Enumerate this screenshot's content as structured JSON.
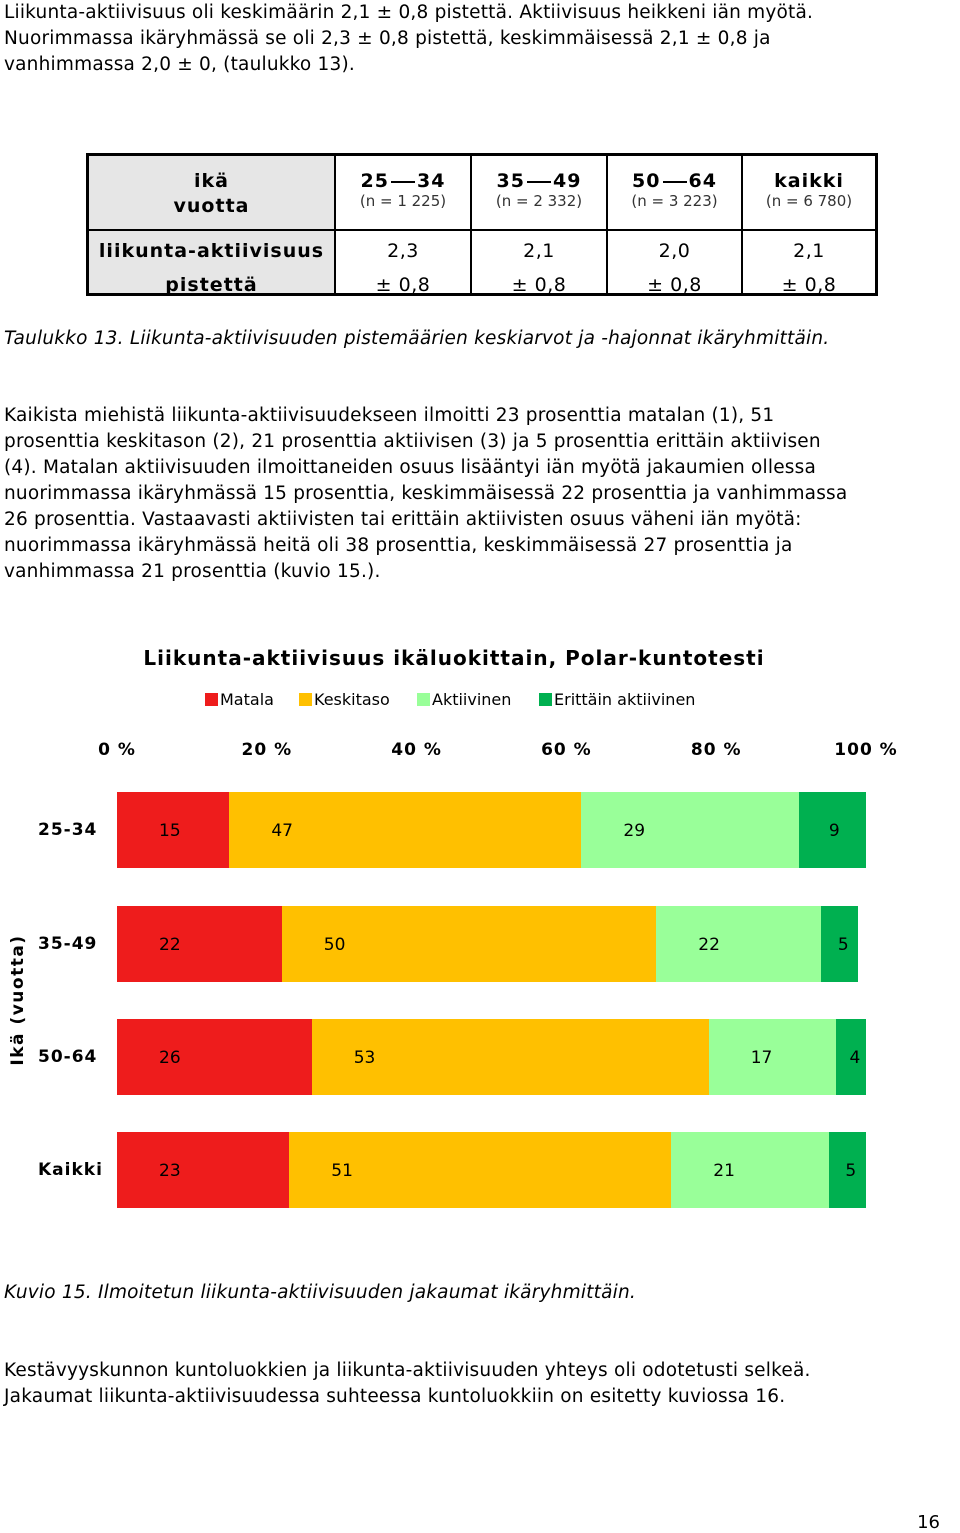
{
  "intro": {
    "line1": "Liikunta-aktiivisuus oli keskimäärin 2,1 ± 0,8 pistettä. Aktiivisuus heikkeni iän myötä.",
    "line2": "Nuorimmassa ikäryhmässä se oli 2,3 ± 0,8 pistettä, keskimmäisessä 2,1 ± 0,8 ja",
    "line3": "vanhimmassa 2,0 ± 0, (taulukko 13)."
  },
  "table": {
    "header_top": "ikä",
    "header_bottom": "vuotta",
    "columns": [
      {
        "from": "25",
        "to": "34",
        "n": "(n = 1 225)"
      },
      {
        "from": "35",
        "to": "49",
        "n": "(n = 2 332)"
      },
      {
        "from": "50",
        "to": "64",
        "n": "(n = 3 223)"
      },
      {
        "label": "kaikki",
        "n": "(n = 6 780)"
      }
    ],
    "row_label1": "liikunta-aktiivisuus",
    "row_label2": "pistettä",
    "means": [
      "2,3",
      "2,1",
      "2,0",
      "2,1"
    ],
    "sds": [
      "± 0,8",
      "± 0,8",
      "± 0,8",
      "± 0,8"
    ],
    "caption": "Taulukko 13. Liikunta-aktiivisuuden pistemäärien keskiarvot ja -hajonnat ikäryhmittäin."
  },
  "body": {
    "lines": [
      "Kaikista miehistä liikunta-aktiivisuudekseen ilmoitti 23 prosenttia matalan (1), 51",
      "prosenttia keskitason (2), 21 prosenttia aktiivisen (3) ja 5 prosenttia erittäin aktiivisen",
      "(4). Matalan aktiivisuuden ilmoittaneiden osuus lisääntyi iän myötä jakaumien ollessa",
      "nuorimmassa ikäryhmässä 15 prosenttia, keskimmäisessä 22 prosenttia ja vanhimmassa",
      "26 prosenttia. Vastaavasti aktiivisten tai erittäin aktiivisten osuus väheni iän myötä:",
      "nuorimmassa ikäryhmässä heitä oli 38 prosenttia, keskimmäisessä 27 prosenttia ja",
      "vanhimmassa 21 prosenttia (kuvio 15.)."
    ]
  },
  "chart_data": {
    "type": "bar",
    "orientation": "horizontal",
    "stacked": true,
    "title": "Liikunta-aktiivisuus ikäluokittain, Polar-kuntotesti",
    "ylabel": "Ikä (vuotta)",
    "xlabel": "",
    "xlim": [
      0,
      100
    ],
    "xtick_labels": [
      "0 %",
      "20 %",
      "40 %",
      "60 %",
      "80 %",
      "100 %"
    ],
    "legend_position": "top",
    "grid": false,
    "categories": [
      "25-34",
      "35-49",
      "50-64",
      "Kaikki"
    ],
    "series": [
      {
        "name": "Matala",
        "color": "#ee1c1c",
        "values": [
          15,
          22,
          26,
          23
        ]
      },
      {
        "name": "Keskitaso",
        "color": "#ffc000",
        "values": [
          47,
          50,
          53,
          51
        ]
      },
      {
        "name": "Aktiivinen",
        "color": "#99ff99",
        "values": [
          29,
          22,
          17,
          21
        ]
      },
      {
        "name": "Erittäin aktiivinen",
        "color": "#00b050",
        "values": [
          9,
          5,
          4,
          5
        ]
      }
    ],
    "caption": "Kuvio 15. Ilmoitetun liikunta-aktiivisuuden jakaumat ikäryhmittäin."
  },
  "closing": {
    "line1": "Kestävyyskunnon kuntoluokkien ja liikunta-aktiivisuuden yhteys oli odotetusti selkeä.",
    "line2": "Jakaumat liikunta-aktiivisuudessa suhteessa kuntoluokkiin on esitetty kuviossa 16."
  },
  "page_number": "16"
}
